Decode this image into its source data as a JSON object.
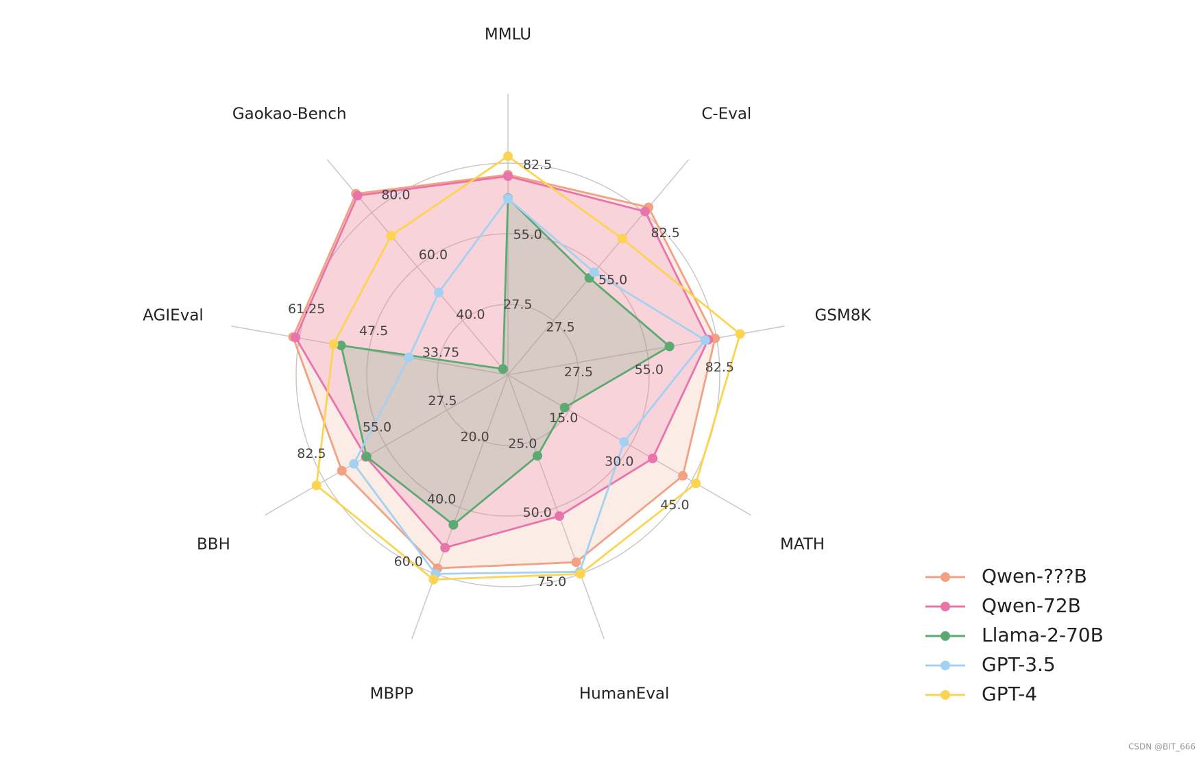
{
  "chart_data": {
    "type": "radar",
    "axes": [
      {
        "name": "MMLU",
        "lim": [
          0,
          82.5
        ],
        "ticks": [
          27.5,
          {
            "value": 55,
            "label": "55.0"
          },
          82.5
        ]
      },
      {
        "name": "C-Eval",
        "lim": [
          0,
          82.5
        ],
        "ticks": [
          27.5,
          {
            "value": 55,
            "label": "55.0"
          },
          82.5
        ]
      },
      {
        "name": "GSM8K",
        "lim": [
          0,
          82.5
        ],
        "ticks": [
          27.5,
          {
            "value": 55,
            "label": "55.0"
          },
          82.5
        ]
      },
      {
        "name": "MATH",
        "lim": [
          0,
          45
        ],
        "ticks": [
          {
            "value": 15,
            "label": "15.0"
          },
          {
            "value": 30,
            "label": "30.0"
          },
          {
            "value": 45,
            "label": "45.0"
          }
        ]
      },
      {
        "name": "HumanEval",
        "lim": [
          0,
          75
        ],
        "ticks": [
          {
            "value": 25,
            "label": "25.0"
          },
          {
            "value": 50,
            "label": "50.0"
          },
          {
            "value": 75,
            "label": "75.0"
          }
        ]
      },
      {
        "name": "MBPP",
        "lim": [
          0,
          60
        ],
        "ticks": [
          {
            "value": 20,
            "label": "20.0"
          },
          {
            "value": 40,
            "label": "40.0"
          },
          {
            "value": 60,
            "label": "60.0"
          }
        ]
      },
      {
        "name": "BBH",
        "lim": [
          0,
          82.5
        ],
        "ticks": [
          27.5,
          {
            "value": 55,
            "label": "55.0"
          },
          82.5
        ]
      },
      {
        "name": "AGIEval",
        "lim": [
          20,
          61.25
        ],
        "ticks": [
          33.75,
          47.5,
          61.25
        ]
      },
      {
        "name": "Gaokao-Bench",
        "lim": [
          20,
          80
        ],
        "ticks": [
          {
            "value": 40,
            "label": "40.0"
          },
          {
            "value": 60,
            "label": "60.0"
          },
          {
            "value": 80,
            "label": "80.0"
          }
        ]
      }
    ],
    "series": [
      {
        "name": "Qwen-???B",
        "color": "#f2a283",
        "filled": true,
        "values": [
          78.0,
          85.2,
          81.9,
          42.9,
          70.6,
          58.3,
          74.7,
          62.5,
          87.0
        ]
      },
      {
        "name": "Qwen-72B",
        "color": "#e973ab",
        "filled": true,
        "values": [
          77.4,
          83.1,
          79.2,
          35.5,
          53.2,
          52.1,
          63.9,
          62.0,
          86.3
        ]
      },
      {
        "name": "Llama-2-70B",
        "color": "#5aaa72",
        "filled": true,
        "values": [
          68.9,
          49.3,
          63.9,
          13.9,
          30.5,
          45.2,
          63.6,
          53.0,
          22.2
        ]
      },
      {
        "name": "GPT-3.5",
        "color": "#a3d1f2",
        "filled": false,
        "values": [
          68.7,
          52.2,
          78.0,
          28.5,
          74.2,
          60.0,
          69.3,
          39.6,
          50.5
        ]
      },
      {
        "name": "GPT-4",
        "color": "#fcd44f",
        "filled": false,
        "values": [
          85.2,
          69.3,
          91.8,
          46.1,
          75.0,
          61.7,
          86.1,
          54.5,
          71.5
        ]
      }
    ],
    "legend": "lower right",
    "watermark": "CSDN @BIT_666"
  }
}
